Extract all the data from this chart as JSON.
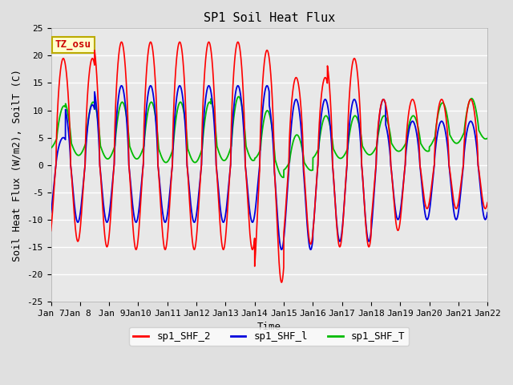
{
  "title": "SP1 Soil Heat Flux",
  "xlabel": "Time",
  "ylabel": "Soil Heat Flux (W/m2), SoilT (C)",
  "ylim": [
    -25,
    25
  ],
  "xlim": [
    0,
    15
  ],
  "xtick_labels": [
    "Jan 7",
    "Jan 8 ",
    "Jan 9",
    "Jan 10",
    "Jan 11",
    "Jan 12",
    "Jan 13",
    "Jan 14",
    "Jan 15",
    "Jan 16",
    "Jan 17",
    "Jan 18",
    "Jan 19",
    "Jan 20",
    "Jan 21",
    "Jan 22"
  ],
  "color_shf2": "#ff0000",
  "color_shf1": "#0000dd",
  "color_shft": "#00bb00",
  "bg_color": "#e0e0e0",
  "plot_bg": "#e8e8e8",
  "grid_color": "#ffffff",
  "annotation_text": "TZ_osu",
  "annotation_bg": "#ffffcc",
  "annotation_edge": "#bbaa00",
  "legend_labels": [
    "sp1_SHF_2",
    "sp1_SHF_l",
    "sp1_SHF_T"
  ],
  "title_fontsize": 11,
  "axis_fontsize": 9,
  "tick_fontsize": 8
}
